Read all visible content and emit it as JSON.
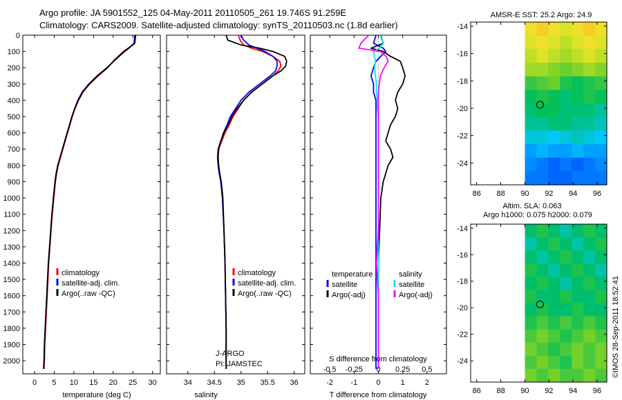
{
  "header": {
    "line1": "Argo profile: JA 5901552_125 04-May-2011 20110505_261 19.746S 91.259E",
    "line2": "Climatology: CARS2009. Satellite-adjusted climatology: synTS_20110503.nc (1.8d earlier)"
  },
  "colors": {
    "climatology": "#ff0000",
    "satellite": "#0000ff",
    "argo": "#000000",
    "satellite_salinity": "#00e5ff",
    "argo_salinity": "#ff00ff"
  },
  "depth_axis": {
    "ylim": [
      0,
      2080
    ],
    "ticks": [
      0,
      100,
      200,
      300,
      400,
      500,
      600,
      700,
      800,
      900,
      1000,
      1100,
      1200,
      1300,
      1400,
      1500,
      1600,
      1700,
      1800,
      1900,
      2000
    ],
    "tick_labels": [
      "0",
      "100",
      "200",
      "300",
      "400",
      "500",
      "600",
      "700",
      "800",
      "900",
      "1000",
      "1100",
      "1200",
      "1300",
      "1400",
      "1500",
      "1600",
      "1700",
      "1800",
      "1900",
      "2000"
    ]
  },
  "chart_data": [
    {
      "id": "temperature",
      "type": "line",
      "xlabel": "temperature (deg C)",
      "xlim": [
        -3,
        32
      ],
      "xticks": [
        0,
        5,
        10,
        15,
        20,
        25,
        30
      ],
      "xtick_labels": [
        "0",
        "5",
        "10",
        "15",
        "20",
        "25",
        "30"
      ],
      "legend": {
        "position": "bottom-right",
        "items": [
          {
            "label": "climatology",
            "color": "#ff0000"
          },
          {
            "label": "satellite-adj. clim.",
            "color": "#0000ff"
          },
          {
            "label": "Argo(..raw -QC)",
            "color": "#000000"
          }
        ]
      },
      "depths": [
        0,
        50,
        80,
        100,
        150,
        200,
        250,
        300,
        350,
        400,
        450,
        500,
        550,
        600,
        650,
        700,
        750,
        800,
        850,
        900,
        1000,
        1100,
        1200,
        1300,
        1400,
        1500,
        1600,
        1700,
        1800,
        1900,
        2000,
        2050
      ],
      "series": [
        {
          "name": "climatology",
          "color": "#ff0000",
          "values": [
            25.6,
            25.4,
            23.8,
            22.6,
            20.4,
            18.6,
            16.2,
            14.0,
            12.3,
            11.2,
            10.3,
            9.6,
            9.0,
            8.4,
            7.8,
            7.2,
            6.6,
            6.0,
            5.6,
            5.3,
            4.9,
            4.5,
            4.2,
            3.9,
            3.6,
            3.4,
            3.2,
            3.0,
            2.8,
            2.6,
            2.5,
            2.4
          ]
        },
        {
          "name": "satellite",
          "color": "#0000ff",
          "values": [
            25.5,
            25.3,
            24.0,
            22.9,
            20.6,
            18.4,
            15.9,
            13.8,
            12.1,
            11.0,
            10.2,
            9.5,
            8.9,
            8.3,
            7.7,
            7.1,
            6.5,
            5.9,
            5.5,
            5.2,
            4.8,
            4.4,
            4.1,
            3.8,
            3.5,
            3.3,
            3.1,
            2.9,
            2.7,
            2.5,
            2.4,
            2.3
          ]
        },
        {
          "name": "Argo(..raw -QC)",
          "color": "#000000",
          "values": [
            25.7,
            25.5,
            23.9,
            22.8,
            20.5,
            18.5,
            16.0,
            13.9,
            12.2,
            11.1,
            10.2,
            9.5,
            8.9,
            8.3,
            7.7,
            7.1,
            6.5,
            5.9,
            5.5,
            5.2,
            4.8,
            4.4,
            4.1,
            3.8,
            3.5,
            3.3,
            3.1,
            2.9,
            2.7,
            2.5,
            2.4,
            2.3
          ]
        }
      ]
    },
    {
      "id": "salinity",
      "type": "line",
      "xlabel": "salinity",
      "xlim": [
        33.6,
        36.2
      ],
      "xticks": [
        34,
        34.5,
        35,
        35.5,
        36
      ],
      "xtick_labels": [
        "34",
        "34.5",
        "35",
        "35.5",
        "36"
      ],
      "legend": {
        "position": "bottom-right",
        "items": [
          {
            "label": "climatology",
            "color": "#ff0000"
          },
          {
            "label": "satellite-adj. clim.",
            "color": "#0000ff"
          },
          {
            "label": "Argo(..raw -QC)",
            "color": "#000000"
          }
        ]
      },
      "annotations": [
        "J-ARGO",
        "PI: JAMSTEC"
      ],
      "depths": [
        0,
        30,
        60,
        80,
        100,
        130,
        160,
        190,
        220,
        250,
        300,
        350,
        400,
        450,
        500,
        550,
        600,
        650,
        700,
        750,
        800,
        850,
        900,
        1000,
        1200,
        1400,
        1600,
        1800,
        2000,
        2050
      ],
      "series": [
        {
          "name": "climatology",
          "color": "#ff0000",
          "values": [
            34.95,
            34.98,
            35.05,
            35.2,
            35.4,
            35.6,
            35.73,
            35.75,
            35.7,
            35.6,
            35.4,
            35.2,
            35.05,
            34.95,
            34.85,
            34.78,
            34.7,
            34.64,
            34.58,
            34.57,
            34.58,
            34.6,
            34.62,
            34.65,
            34.68,
            34.7,
            34.71,
            34.72,
            34.72,
            34.72
          ]
        },
        {
          "name": "satellite",
          "color": "#0000ff",
          "values": [
            35.0,
            35.05,
            35.15,
            35.3,
            35.45,
            35.6,
            35.68,
            35.68,
            35.65,
            35.55,
            35.35,
            35.15,
            35.0,
            34.9,
            34.8,
            34.74,
            34.67,
            34.62,
            34.57,
            34.56,
            34.57,
            34.59,
            34.62,
            34.65,
            34.68,
            34.7,
            34.71,
            34.72,
            34.72,
            34.72
          ]
        },
        {
          "name": "Argo(..raw -QC)",
          "color": "#000000",
          "values": [
            34.72,
            34.75,
            35.0,
            35.35,
            35.6,
            35.82,
            35.86,
            35.84,
            35.75,
            35.6,
            35.4,
            35.2,
            35.05,
            34.93,
            34.83,
            34.76,
            34.68,
            34.62,
            34.58,
            34.57,
            34.58,
            34.6,
            34.63,
            34.66,
            34.68,
            34.7,
            34.71,
            34.72,
            34.72,
            34.72
          ]
        }
      ]
    },
    {
      "id": "differences",
      "type": "line",
      "xlabel": "T difference from climatology",
      "xlim": [
        -2.8,
        2.8
      ],
      "xticks": [
        -2,
        -1,
        0,
        1,
        2
      ],
      "xtick_labels": [
        "-2",
        "-1",
        "0",
        "1",
        "2"
      ],
      "top_axis_label": "S difference from climatology",
      "s_ticks": [
        -0.5,
        -0.25,
        0,
        0.25,
        0.5
      ],
      "s_tick_labels": [
        "-0.5",
        "-0.25",
        "0",
        "0.25",
        "0.5"
      ],
      "legend": {
        "position": "bottom-right",
        "items": [
          {
            "label": "temperature",
            "color": "#000000"
          },
          {
            "label": "salinity",
            "color": "#000000"
          },
          {
            "label": "satellite",
            "color": "#0000ff"
          },
          {
            "label": "satellite",
            "color": "#00e5ff"
          },
          {
            "label": "Argo(-adj)",
            "color": "#000000"
          },
          {
            "label": "Argo(-adj)",
            "color": "#ff00ff"
          }
        ]
      },
      "depths": [
        0,
        50,
        80,
        100,
        130,
        160,
        200,
        250,
        300,
        350,
        400,
        450,
        500,
        550,
        600,
        650,
        700,
        750,
        800,
        850,
        900,
        1000,
        1200,
        1400,
        1600,
        1800,
        2000,
        2050
      ],
      "series": [
        {
          "name": "T satellite",
          "color": "#0000ff",
          "values": [
            -0.1,
            -0.2,
            0.2,
            0.3,
            0.1,
            -0.1,
            -0.2,
            -0.3,
            -0.2,
            -0.2,
            -0.1,
            -0.1,
            -0.1,
            -0.1,
            -0.1,
            -0.1,
            -0.1,
            -0.1,
            -0.1,
            -0.1,
            -0.1,
            -0.1,
            -0.1,
            -0.1,
            -0.1,
            -0.1,
            -0.1,
            -0.1
          ]
        },
        {
          "name": "T Argo(-adj)",
          "color": "#000000",
          "values": [
            0.1,
            0.2,
            -0.3,
            0.2,
            0.5,
            0.9,
            1.0,
            1.1,
            1.0,
            0.8,
            0.7,
            0.8,
            0.7,
            0.5,
            0.4,
            0.3,
            0.5,
            0.6,
            0.4,
            0.3,
            0.2,
            0.1,
            0.05,
            0.0,
            0.0,
            0.0,
            0.0,
            0.0
          ]
        },
        {
          "name": "S satellite",
          "color": "#00e5ff",
          "values": [
            0.02,
            0.05,
            0.01,
            -0.05,
            -0.04,
            -0.03,
            -0.04,
            -0.03,
            -0.02,
            -0.02,
            -0.01,
            -0.01,
            0.0,
            0.0,
            0.0,
            0.0,
            0.0,
            0.0,
            0.0,
            0.0,
            0.0,
            0.0,
            0.0,
            0.0,
            0.0,
            0.0,
            0.0,
            0.0
          ]
        },
        {
          "name": "S Argo(-adj)",
          "color": "#ff00ff",
          "values": [
            -0.1,
            -0.18,
            -0.2,
            0.02,
            0.08,
            0.1,
            0.06,
            0.02,
            0.01,
            0.0,
            0.0,
            0.0,
            0.0,
            0.0,
            0.0,
            0.0,
            0.0,
            0.0,
            0.0,
            0.0,
            0.0,
            0.0,
            0.0,
            -0.02,
            0.0,
            0.0,
            0.0,
            0.0
          ]
        }
      ]
    },
    {
      "id": "sst_map",
      "type": "heatmap",
      "title": "AMSR-E SST: 25.2  Argo: 24.9",
      "xlim": [
        85.5,
        96.8
      ],
      "ylim": [
        -25.6,
        -13.7
      ],
      "xticks": [
        86,
        88,
        90,
        92,
        94,
        96
      ],
      "xtick_labels": [
        "86",
        "88",
        "90",
        "92",
        "94",
        "96"
      ],
      "yticks": [
        -14,
        -16,
        -18,
        -20,
        -22,
        -24
      ],
      "ytick_labels": [
        "-14",
        "-16",
        "-18",
        "-20",
        "-22",
        "-24"
      ],
      "data_region": {
        "lon": [
          90.0,
          96.8
        ],
        "lat": [
          -25.6,
          -13.7
        ]
      },
      "rows_lat": [
        -14,
        -15,
        -16,
        -17,
        -18,
        -19,
        -20,
        -21,
        -22,
        -23,
        -24,
        -25
      ],
      "cols_lon": [
        90.5,
        91.5,
        92.5,
        93.5,
        94.5,
        95.5,
        96.5
      ],
      "values": [
        [
          25.6,
          25.7,
          25.6,
          25.5,
          25.6,
          25.7,
          25.6
        ],
        [
          25.5,
          25.6,
          25.5,
          25.4,
          25.5,
          25.6,
          25.5
        ],
        [
          25.4,
          25.5,
          25.4,
          25.3,
          25.4,
          25.5,
          25.4
        ],
        [
          25.3,
          25.3,
          25.2,
          25.1,
          25.2,
          25.3,
          25.2
        ],
        [
          24.9,
          25.0,
          25.1,
          24.8,
          24.7,
          24.8,
          24.9
        ],
        [
          24.7,
          24.8,
          24.7,
          24.6,
          24.7,
          24.8,
          24.7
        ],
        [
          24.6,
          24.7,
          24.7,
          24.6,
          24.6,
          24.6,
          24.5
        ],
        [
          24.5,
          24.5,
          24.6,
          24.6,
          24.5,
          24.5,
          24.4
        ],
        [
          24.3,
          24.3,
          24.2,
          24.3,
          24.4,
          24.3,
          24.2
        ],
        [
          24.0,
          24.1,
          24.0,
          24.0,
          24.1,
          24.0,
          24.0
        ],
        [
          23.9,
          23.8,
          23.7,
          23.8,
          23.7,
          23.8,
          23.9
        ],
        [
          23.8,
          23.8,
          23.7,
          23.7,
          23.8,
          23.8,
          23.8
        ]
      ],
      "color_range": [
        23.6,
        26.0
      ],
      "marker": {
        "lon": 91.259,
        "lat": -19.746
      }
    },
    {
      "id": "sla_map",
      "type": "heatmap",
      "title": "Altim. SLA: 0.063",
      "subtitle": "Argo h1000: 0.075  h2000: 0.079",
      "xlim": [
        85.5,
        96.8
      ],
      "ylim": [
        -25.6,
        -13.7
      ],
      "xticks": [
        86,
        88,
        90,
        92,
        94,
        96
      ],
      "xtick_labels": [
        "86",
        "88",
        "90",
        "92",
        "94",
        "96"
      ],
      "yticks": [
        -14,
        -16,
        -18,
        -20,
        -22,
        -24
      ],
      "ytick_labels": [
        "-14",
        "-16",
        "-18",
        "-20",
        "-22",
        "-24"
      ],
      "data_region": {
        "lon": [
          90.0,
          96.8
        ],
        "lat": [
          -25.6,
          -13.7
        ]
      },
      "rows_lat": [
        -14,
        -15,
        -16,
        -17,
        -18,
        -19,
        -20,
        -21,
        -22,
        -23,
        -24,
        -25
      ],
      "cols_lon": [
        90.5,
        91.5,
        92.5,
        93.5,
        94.5,
        95.5,
        96.5
      ],
      "values": [
        [
          0.06,
          0.07,
          0.06,
          0.05,
          0.06,
          0.07,
          0.06
        ],
        [
          0.05,
          0.06,
          0.07,
          0.06,
          0.05,
          0.06,
          0.07
        ],
        [
          0.06,
          0.05,
          0.06,
          0.07,
          0.06,
          0.05,
          0.06
        ],
        [
          0.07,
          0.06,
          0.05,
          0.06,
          0.07,
          0.06,
          0.05
        ],
        [
          0.06,
          0.07,
          0.06,
          0.05,
          0.06,
          0.07,
          0.06
        ],
        [
          0.07,
          0.06,
          0.06,
          0.07,
          0.06,
          0.06,
          0.07
        ],
        [
          0.06,
          0.07,
          0.06,
          0.06,
          0.07,
          0.06,
          0.06
        ],
        [
          0.07,
          0.08,
          0.07,
          0.08,
          0.07,
          0.08,
          0.07
        ],
        [
          0.08,
          0.09,
          0.08,
          0.07,
          0.08,
          0.09,
          0.08
        ],
        [
          0.09,
          0.08,
          0.07,
          0.08,
          0.09,
          0.08,
          0.09
        ],
        [
          0.08,
          0.09,
          0.08,
          0.07,
          0.09,
          0.08,
          0.09
        ],
        [
          0.09,
          0.08,
          0.09,
          0.08,
          0.08,
          0.09,
          0.08
        ]
      ],
      "color_range": [
        0.0,
        0.14
      ],
      "marker": {
        "lon": 91.259,
        "lat": -19.746
      }
    }
  ],
  "footer": {
    "credit": "©IMOS 28-Sep-2011 18:52:41"
  }
}
